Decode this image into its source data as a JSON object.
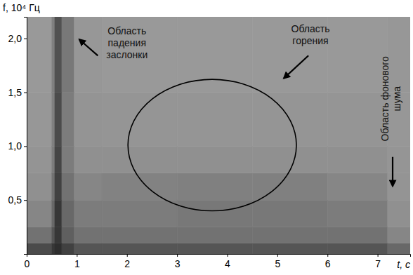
{
  "chart_data": {
    "type": "heatmap",
    "x_label": "t, с",
    "y_label": "f, 10⁴ Гц",
    "xlim": [
      0,
      7.65
    ],
    "ylim": [
      0,
      2.2
    ],
    "xticks": [
      0,
      1,
      2,
      3,
      4,
      5,
      6,
      7
    ],
    "yticks": [
      {
        "value": 0.5,
        "label": "0,5"
      },
      {
        "value": 1,
        "label": "1,0"
      },
      {
        "value": 1.5,
        "label": "1,5"
      },
      {
        "value": 2,
        "label": "2,0"
      }
    ],
    "zlim": [
      0,
      1
    ],
    "t_edges": [
      0,
      0.5,
      0.56,
      0.7,
      0.95,
      1.5,
      3,
      4.5,
      6,
      7.2,
      7.65
    ],
    "f_edges": [
      0,
      0.1,
      0.25,
      0.5,
      0.75,
      1.0,
      1.5,
      2.2
    ],
    "cells": [
      [
        0.75,
        0.85,
        0.9,
        0.8,
        0.7,
        0.7,
        0.7,
        0.7,
        0.7,
        0.6
      ],
      [
        0.55,
        0.7,
        0.85,
        0.65,
        0.55,
        0.55,
        0.55,
        0.55,
        0.55,
        0.45
      ],
      [
        0.45,
        0.6,
        0.85,
        0.6,
        0.5,
        0.5,
        0.52,
        0.52,
        0.5,
        0.4
      ],
      [
        0.4,
        0.55,
        0.8,
        0.55,
        0.45,
        0.47,
        0.48,
        0.48,
        0.45,
        0.38
      ],
      [
        0.38,
        0.5,
        0.78,
        0.5,
        0.4,
        0.4,
        0.4,
        0.4,
        0.4,
        0.37
      ],
      [
        0.36,
        0.48,
        0.75,
        0.5,
        0.38,
        0.37,
        0.37,
        0.37,
        0.37,
        0.36
      ],
      [
        0.35,
        0.48,
        0.72,
        0.52,
        0.36,
        0.35,
        0.35,
        0.35,
        0.35,
        0.36
      ]
    ],
    "regions": [
      {
        "t": 3.7,
        "f": 1.01,
        "rt": 1.68,
        "rf": 0.61
      }
    ],
    "annotations": [
      {
        "text": [
          "Область",
          "падения",
          "заслонки"
        ],
        "t": 2.0,
        "f": 2.04,
        "arrow_from": [
          1.42,
          1.84
        ],
        "arrow_to": [
          1.05,
          1.99
        ]
      },
      {
        "text": [
          "Область",
          "горения"
        ],
        "t": 5.66,
        "f": 2.06,
        "arrow_from": [
          5.62,
          1.84
        ],
        "arrow_to": [
          5.13,
          1.63
        ]
      },
      {
        "text": [
          "Область фонового",
          "шума"
        ],
        "t": 7.22,
        "f": 1.44,
        "orientation": "vertical",
        "arrow_from": [
          7.3,
          0.9
        ],
        "arrow_to": [
          7.3,
          0.63
        ]
      }
    ]
  }
}
